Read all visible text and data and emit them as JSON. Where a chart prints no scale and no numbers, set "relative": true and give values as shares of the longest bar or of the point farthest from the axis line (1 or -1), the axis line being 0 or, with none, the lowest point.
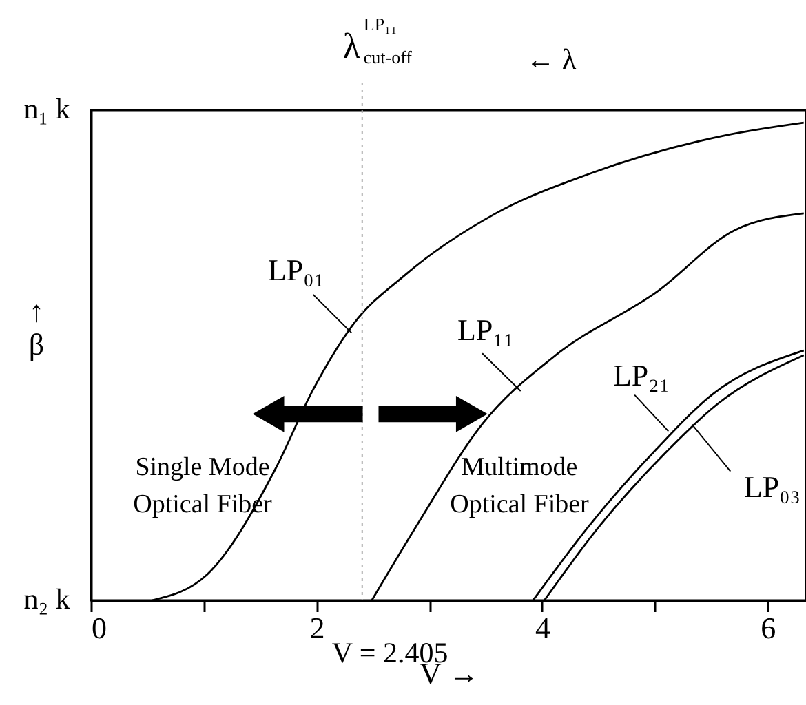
{
  "chart_data": {
    "type": "line",
    "xlabel": "V →",
    "ylabel": "↑\nβ",
    "xlim": [
      0,
      6.34
    ],
    "relative": true,
    "xticks": [
      0,
      {
        "value": 1,
        "label": null
      },
      2,
      {
        "value": 3,
        "label": null
      },
      4,
      {
        "value": 5,
        "label": null
      },
      6
    ],
    "grid": false,
    "legend": false,
    "marker": "none",
    "line_style": "solid",
    "series": [
      {
        "name": "LP₀₁",
        "color": "#000000",
        "x": [
          0.54,
          1.03,
          1.64,
          1.97,
          2.33,
          2.78,
          3.59,
          4.41,
          5.64,
          6.32
        ],
        "values": [
          0,
          0.054,
          0.277,
          0.441,
          0.579,
          0.68,
          0.81,
          0.892,
          0.974,
          1
        ]
      },
      {
        "name": "LP₁₁",
        "color": "#000000",
        "x": [
          2.49,
          2.9,
          3.47,
          4.12,
          5.02,
          5.71,
          6.32
        ],
        "values": [
          0,
          0.161,
          0.369,
          0.513,
          0.646,
          0.775,
          0.81
        ]
      },
      {
        "name": "LP₂₁",
        "color": "#000000",
        "x": [
          3.92,
          4.41,
          5.02,
          5.51,
          6.32
        ],
        "values": [
          0,
          0.154,
          0.318,
          0.431,
          0.523
        ]
      },
      {
        "name": "LP₀₃",
        "color": "#000000",
        "x": [
          4.02,
          4.47,
          5.09,
          5.55,
          6.32
        ],
        "values": [
          0,
          0.144,
          0.308,
          0.41,
          0.513
        ]
      }
    ],
    "ref_lines": [
      {
        "axis": "x",
        "value": 2.405,
        "label": "λ$^{LP₁₁}$$_{cut-off}$",
        "color": "#aaaaaa",
        "line_style": "dotted"
      }
    ],
    "annotations": [
      "Single Mode\nOptical Fiber",
      "Multimode\nOptical Fiber",
      "V = 2.405",
      "← λ",
      "n₂ k",
      "n₁ k"
    ]
  }
}
